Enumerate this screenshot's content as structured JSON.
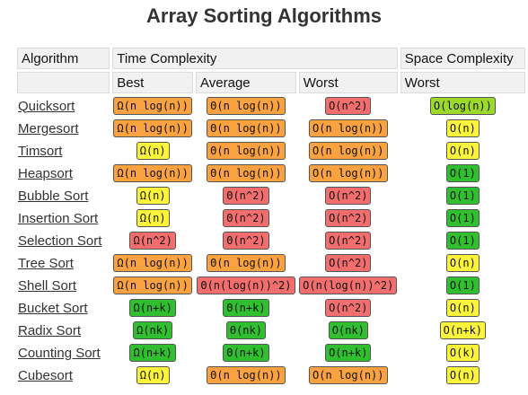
{
  "title": "Array Sorting Algorithms",
  "headers": {
    "algorithm": "Algorithm",
    "time_complexity": "Time Complexity",
    "space_complexity": "Space Complexity",
    "best": "Best",
    "average": "Average",
    "worst": "Worst",
    "space_worst": "Worst"
  },
  "colors": {
    "orange": "#f9a23f",
    "red": "#f26e6e",
    "yellow": "#fbf43a",
    "green": "#2fbf2f",
    "lime": "#9cd92b"
  },
  "rows": [
    {
      "name": "Quicksort",
      "best": {
        "text": "Ω(n log(n))",
        "color": "orange"
      },
      "average": {
        "text": "Θ(n log(n))",
        "color": "orange"
      },
      "worst": {
        "text": "O(n^2)",
        "color": "red"
      },
      "space": {
        "text": "O(log(n))",
        "color": "lime"
      }
    },
    {
      "name": "Mergesort",
      "best": {
        "text": "Ω(n log(n))",
        "color": "orange"
      },
      "average": {
        "text": "Θ(n log(n))",
        "color": "orange"
      },
      "worst": {
        "text": "O(n log(n))",
        "color": "orange"
      },
      "space": {
        "text": "O(n)",
        "color": "yellow"
      }
    },
    {
      "name": "Timsort",
      "best": {
        "text": "Ω(n)",
        "color": "yellow"
      },
      "average": {
        "text": "Θ(n log(n))",
        "color": "orange"
      },
      "worst": {
        "text": "O(n log(n))",
        "color": "orange"
      },
      "space": {
        "text": "O(n)",
        "color": "yellow"
      }
    },
    {
      "name": "Heapsort",
      "best": {
        "text": "Ω(n log(n))",
        "color": "orange"
      },
      "average": {
        "text": "Θ(n log(n))",
        "color": "orange"
      },
      "worst": {
        "text": "O(n log(n))",
        "color": "orange"
      },
      "space": {
        "text": "O(1)",
        "color": "green"
      }
    },
    {
      "name": "Bubble Sort",
      "best": {
        "text": "Ω(n)",
        "color": "yellow"
      },
      "average": {
        "text": "Θ(n^2)",
        "color": "red"
      },
      "worst": {
        "text": "O(n^2)",
        "color": "red"
      },
      "space": {
        "text": "O(1)",
        "color": "green"
      }
    },
    {
      "name": "Insertion Sort",
      "best": {
        "text": "Ω(n)",
        "color": "yellow"
      },
      "average": {
        "text": "Θ(n^2)",
        "color": "red"
      },
      "worst": {
        "text": "O(n^2)",
        "color": "red"
      },
      "space": {
        "text": "O(1)",
        "color": "green"
      }
    },
    {
      "name": "Selection Sort",
      "best": {
        "text": "Ω(n^2)",
        "color": "red"
      },
      "average": {
        "text": "Θ(n^2)",
        "color": "red"
      },
      "worst": {
        "text": "O(n^2)",
        "color": "red"
      },
      "space": {
        "text": "O(1)",
        "color": "green"
      }
    },
    {
      "name": "Tree Sort",
      "best": {
        "text": "Ω(n log(n))",
        "color": "orange"
      },
      "average": {
        "text": "Θ(n log(n))",
        "color": "orange"
      },
      "worst": {
        "text": "O(n^2)",
        "color": "red"
      },
      "space": {
        "text": "O(n)",
        "color": "yellow"
      }
    },
    {
      "name": "Shell Sort",
      "best": {
        "text": "Ω(n log(n))",
        "color": "orange"
      },
      "average": {
        "text": "Θ(n(log(n))^2)",
        "color": "red"
      },
      "worst": {
        "text": "O(n(log(n))^2)",
        "color": "red"
      },
      "space": {
        "text": "O(1)",
        "color": "green"
      }
    },
    {
      "name": "Bucket Sort",
      "best": {
        "text": "Ω(n+k)",
        "color": "green"
      },
      "average": {
        "text": "Θ(n+k)",
        "color": "green"
      },
      "worst": {
        "text": "O(n^2)",
        "color": "red"
      },
      "space": {
        "text": "O(n)",
        "color": "yellow"
      }
    },
    {
      "name": "Radix Sort",
      "best": {
        "text": "Ω(nk)",
        "color": "green"
      },
      "average": {
        "text": "Θ(nk)",
        "color": "green"
      },
      "worst": {
        "text": "O(nk)",
        "color": "green"
      },
      "space": {
        "text": "O(n+k)",
        "color": "yellow"
      }
    },
    {
      "name": "Counting Sort",
      "best": {
        "text": "Ω(n+k)",
        "color": "green"
      },
      "average": {
        "text": "Θ(n+k)",
        "color": "green"
      },
      "worst": {
        "text": "O(n+k)",
        "color": "green"
      },
      "space": {
        "text": "O(k)",
        "color": "yellow"
      }
    },
    {
      "name": "Cubesort",
      "best": {
        "text": "Ω(n)",
        "color": "yellow"
      },
      "average": {
        "text": "Θ(n log(n))",
        "color": "orange"
      },
      "worst": {
        "text": "O(n log(n))",
        "color": "orange"
      },
      "space": {
        "text": "O(n)",
        "color": "yellow"
      }
    }
  ]
}
